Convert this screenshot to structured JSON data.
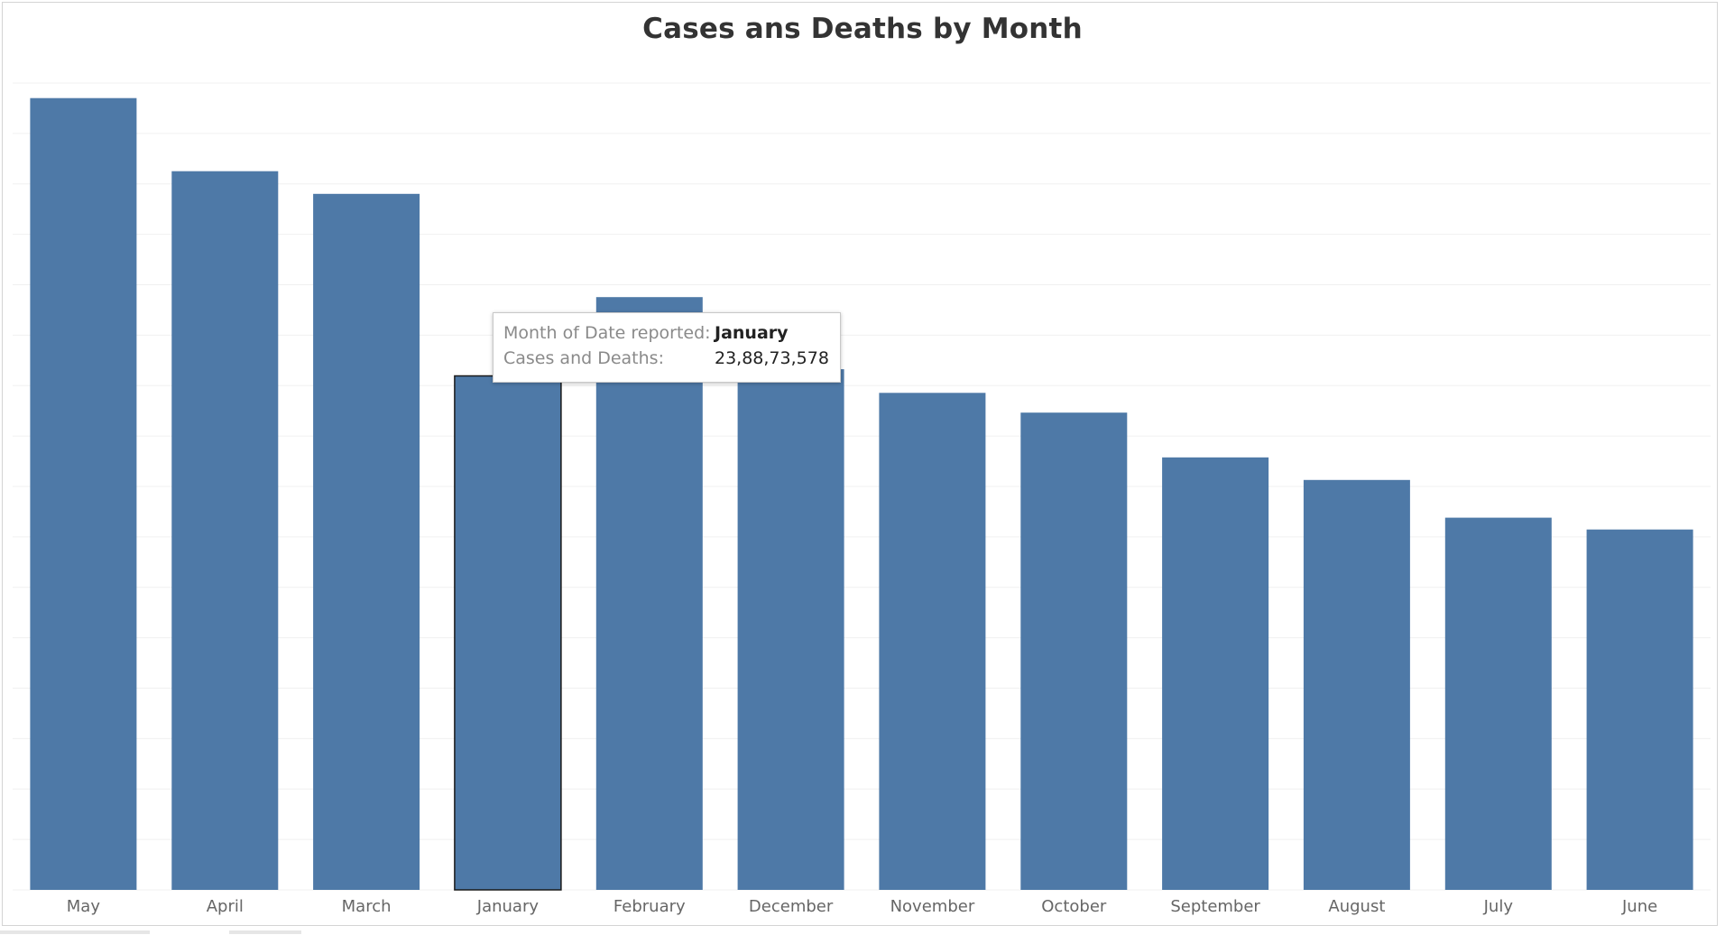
{
  "chart_data": {
    "type": "bar",
    "title": "Cases ans Deaths by Month",
    "xlabel": "",
    "ylabel": "",
    "categories": [
      "May",
      "April",
      "March",
      "January",
      "February",
      "December",
      "November",
      "October",
      "September",
      "August",
      "July",
      "June"
    ],
    "values": [
      368000000,
      334000000,
      323500000,
      238873578,
      275500000,
      242000000,
      231000000,
      221800000,
      201000000,
      190500000,
      173000000,
      167500000
    ],
    "ylim": [
      0,
      375000000
    ],
    "grid": true,
    "bar_color": "#4e79a7",
    "highlighted_category": "January"
  },
  "tooltip": {
    "month_label": "Month of Date reported:",
    "month_value": "January",
    "metric_label": "Cases and Deaths:",
    "metric_value": "23,88,73,578"
  }
}
